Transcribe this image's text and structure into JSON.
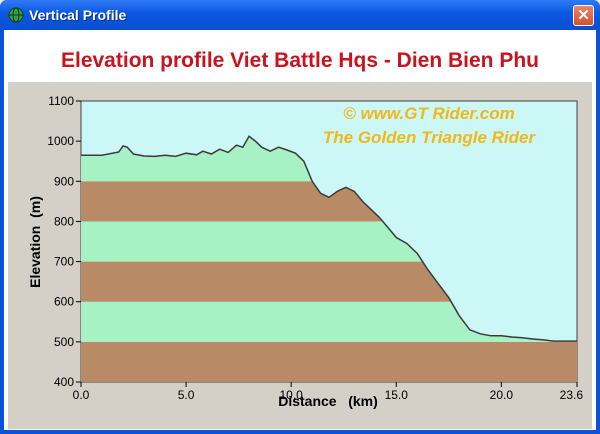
{
  "window": {
    "title": "Vertical Profile",
    "close_label": "✕",
    "icon": "globe-icon"
  },
  "chart_title": "Elevation profile Viet Battle Hqs - Dien Bien Phu",
  "watermark": {
    "line1": "©  www.GT Rider.com",
    "line2": "The Golden Triangle Rider"
  },
  "colors": {
    "band_green": "#a7f2c4",
    "band_brown": "#b88a66",
    "sky": "#ccf7f7",
    "heading": "#c8141e",
    "watermark": "#f0b81a"
  },
  "chart_data": {
    "type": "area",
    "xlabel": "Distance   (km)",
    "ylabel": "Elevation  (m)",
    "xlim": [
      0,
      23.6
    ],
    "ylim": [
      400,
      1100
    ],
    "x_ticks": [
      0,
      5,
      10,
      15,
      20,
      23.6
    ],
    "x_tick_labels": [
      "0.0",
      "5.0",
      "10.0",
      "15.0",
      "20.0",
      "23.6"
    ],
    "y_ticks": [
      400,
      500,
      600,
      700,
      800,
      900,
      1000,
      1100
    ],
    "y_tick_labels": [
      "400",
      "500",
      "600",
      "700",
      "800",
      "900",
      "1000",
      "1100"
    ],
    "bands": [
      {
        "from": 400,
        "to": 500,
        "color": "brown"
      },
      {
        "from": 500,
        "to": 600,
        "color": "green"
      },
      {
        "from": 600,
        "to": 700,
        "color": "brown"
      },
      {
        "from": 700,
        "to": 800,
        "color": "green"
      },
      {
        "from": 800,
        "to": 900,
        "color": "brown"
      },
      {
        "from": 900,
        "to": 1100,
        "color": "green"
      }
    ],
    "x": [
      0,
      1.0,
      1.8,
      2.0,
      2.2,
      2.5,
      3.0,
      3.5,
      4.0,
      4.5,
      5.0,
      5.5,
      5.8,
      6.2,
      6.6,
      7.0,
      7.4,
      7.7,
      8.0,
      8.3,
      8.6,
      9.0,
      9.4,
      9.8,
      10.2,
      10.6,
      11.0,
      11.4,
      11.8,
      12.2,
      12.6,
      13.0,
      13.4,
      13.8,
      14.2,
      14.6,
      15.0,
      15.5,
      16.0,
      16.5,
      17.0,
      17.5,
      18.0,
      18.5,
      19.0,
      19.5,
      20.0,
      20.5,
      21.0,
      21.5,
      22.0,
      22.5,
      23.0,
      23.6
    ],
    "y": [
      965,
      965,
      973,
      988,
      985,
      968,
      963,
      962,
      965,
      962,
      970,
      966,
      975,
      968,
      980,
      972,
      990,
      985,
      1012,
      1000,
      985,
      975,
      985,
      978,
      970,
      950,
      900,
      870,
      860,
      875,
      885,
      875,
      850,
      830,
      810,
      785,
      760,
      745,
      720,
      680,
      645,
      610,
      565,
      530,
      520,
      515,
      515,
      512,
      510,
      507,
      505,
      502,
      502,
      502
    ]
  }
}
